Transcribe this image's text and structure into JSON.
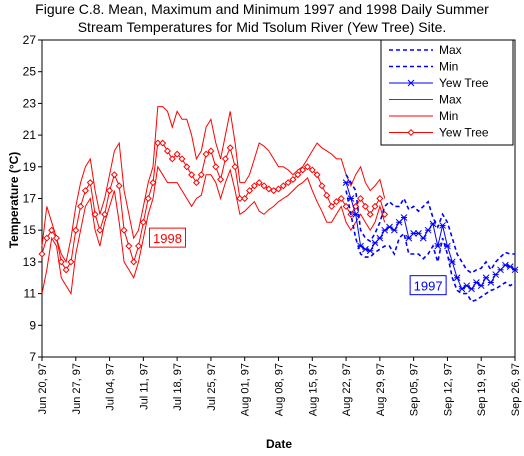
{
  "chart_data": {
    "type": "line",
    "title_line1": "Figure C.8.  Mean, Maximum and Minimum 1997 and 1998 Daily Summer",
    "title_line2": "Stream Temperatures for Mid Tsolum River (Yew Tree) Site.",
    "xlabel": "Date",
    "ylabel": "Temperature (°C)",
    "ylim": [
      7,
      27
    ],
    "yticks": [
      7,
      9,
      11,
      13,
      15,
      17,
      19,
      21,
      23,
      25,
      27
    ],
    "x_tick_labels": [
      "Jun 20, 97",
      "Jun 27, 97",
      "Jul 04, 97",
      "Jul 11, 97",
      "Jul 18, 97",
      "Jul 25, 97",
      "Aug 01, 97",
      "Aug 08, 97",
      "Aug 15, 97",
      "Aug 22, 97",
      "Aug 29, 97",
      "Sep 05, 97",
      "Sep 12, 97",
      "Sep 19, 97",
      "Sep 26, 97"
    ],
    "x_range_days": [
      0,
      98
    ],
    "annotations": [
      {
        "text": "1998",
        "color": "#ff0000",
        "x_day": 26,
        "y": 14.5
      },
      {
        "text": "1997",
        "color": "#0000ff",
        "x_day": 80,
        "y": 11.5
      }
    ],
    "legend": {
      "position": "top-right",
      "entries": [
        {
          "label": "Max",
          "color": "#0000ff",
          "style": "dashed-blue"
        },
        {
          "label": "Min",
          "color": "#0000ff",
          "style": "dashed-blue"
        },
        {
          "label": "Yew Tree",
          "color": "#0000ff",
          "style": "star-blue"
        },
        {
          "label": "Max",
          "color": "#ff0000",
          "style": "solid-red"
        },
        {
          "label": "Min",
          "color": "#ff0000",
          "style": "solid-red"
        },
        {
          "label": "Yew Tree",
          "color": "#ff0000",
          "style": "diamond-red"
        }
      ]
    },
    "series": [
      {
        "name": "Max",
        "year": "1998",
        "color": "#ff0000",
        "style": "solid",
        "x": [
          0,
          1,
          2,
          3,
          4,
          5,
          6,
          7,
          8,
          9,
          10,
          11,
          12,
          13,
          14,
          15,
          16,
          17,
          18,
          19,
          20,
          21,
          22,
          23,
          24,
          25,
          26,
          27,
          28,
          29,
          30,
          31,
          32,
          33,
          34,
          35,
          36,
          37,
          38,
          39,
          40,
          41,
          42,
          43,
          44,
          45,
          46,
          47,
          48,
          49,
          50,
          51,
          52,
          53,
          54,
          55,
          56,
          57,
          58,
          59,
          60,
          61,
          62,
          63,
          64,
          65,
          66,
          67,
          68,
          69,
          70,
          71
        ],
        "values": [
          14,
          16.5,
          15.5,
          14.5,
          13.5,
          13,
          14.5,
          16.5,
          18,
          19,
          19.5,
          17.5,
          16,
          17,
          18.5,
          20,
          20.5,
          17.5,
          16,
          14.5,
          15,
          16.5,
          18,
          19,
          22.8,
          22.8,
          22.5,
          21.5,
          22.5,
          22,
          22,
          21,
          19.5,
          20,
          21.5,
          22,
          20.5,
          19.5,
          21,
          22.5,
          20.5,
          18,
          18,
          18.5,
          19.5,
          20.5,
          20.3,
          20,
          19.5,
          19,
          19,
          18.8,
          18.5,
          18.8,
          19,
          19.5,
          20,
          20.5,
          20.2,
          20,
          19.8,
          19.5,
          19.5,
          18.5,
          17.8,
          18.5,
          19,
          18,
          17.5,
          17.8,
          18.2,
          17
        ]
      },
      {
        "name": "Yew Tree",
        "year": "1998",
        "color": "#ff0000",
        "style": "diamond",
        "x": [
          0,
          1,
          2,
          3,
          4,
          5,
          6,
          7,
          8,
          9,
          10,
          11,
          12,
          13,
          14,
          15,
          16,
          17,
          18,
          19,
          20,
          21,
          22,
          23,
          24,
          25,
          26,
          27,
          28,
          29,
          30,
          31,
          32,
          33,
          34,
          35,
          36,
          37,
          38,
          39,
          40,
          41,
          42,
          43,
          44,
          45,
          46,
          47,
          48,
          49,
          50,
          51,
          52,
          53,
          54,
          55,
          56,
          57,
          58,
          59,
          60,
          61,
          62,
          63,
          64,
          65,
          66,
          67,
          68,
          69,
          70,
          71
        ],
        "values": [
          13.5,
          14.5,
          15,
          14.5,
          13,
          12.5,
          13,
          15,
          16.5,
          17.5,
          18,
          16,
          15,
          16,
          17.5,
          18.5,
          17.8,
          15,
          14,
          13,
          14,
          15.5,
          17,
          18,
          20.5,
          20.5,
          20,
          19.5,
          19.8,
          19.5,
          19,
          18.5,
          18,
          18.5,
          19.8,
          20,
          19,
          18.2,
          19.5,
          20.2,
          19,
          17,
          17,
          17.5,
          17.8,
          18,
          17.8,
          17.6,
          17.5,
          17.6,
          17.8,
          18,
          18.2,
          18.5,
          18.8,
          19,
          18.8,
          18.5,
          17.8,
          17.2,
          16.5,
          16.8,
          17,
          16.5,
          16,
          16.5,
          17,
          16.5,
          16,
          16.5,
          17,
          16
        ]
      },
      {
        "name": "Min",
        "year": "1998",
        "color": "#ff0000",
        "style": "solid",
        "x": [
          0,
          1,
          2,
          3,
          4,
          5,
          6,
          7,
          8,
          9,
          10,
          11,
          12,
          13,
          14,
          15,
          16,
          17,
          18,
          19,
          20,
          21,
          22,
          23,
          24,
          25,
          26,
          27,
          28,
          29,
          30,
          31,
          32,
          33,
          34,
          35,
          36,
          37,
          38,
          39,
          40,
          41,
          42,
          43,
          44,
          45,
          46,
          47,
          48,
          49,
          50,
          51,
          52,
          53,
          54,
          55,
          56,
          57,
          58,
          59,
          60,
          61,
          62,
          63,
          64,
          65,
          66,
          67,
          68,
          69,
          70,
          71
        ],
        "values": [
          11,
          12.5,
          14.5,
          14,
          12,
          11.5,
          11,
          13.5,
          15,
          16.5,
          17,
          15,
          14,
          15.5,
          16.5,
          17.5,
          15.5,
          13,
          12.5,
          12,
          13,
          14.5,
          16,
          17,
          19,
          18.5,
          18,
          18,
          18,
          17.5,
          17,
          16.5,
          17,
          17.2,
          18.5,
          18.5,
          18,
          17,
          18,
          18.8,
          17.5,
          16,
          16.2,
          16.5,
          16.8,
          16.2,
          16,
          16.3,
          16.5,
          16.8,
          17,
          17.2,
          17.5,
          17.8,
          18,
          18.3,
          17.5,
          16.8,
          16.2,
          15.5,
          15.5,
          16,
          16.5,
          15.5,
          15,
          15.5,
          16,
          15.5,
          15,
          15.5,
          16.5,
          15.5
        ]
      },
      {
        "name": "Max",
        "year": "1997",
        "color": "#0000ff",
        "style": "dashed",
        "x": [
          63,
          64,
          65,
          66,
          67,
          68,
          69,
          70,
          71,
          72,
          73,
          74,
          75,
          76,
          77,
          78,
          79,
          80,
          81,
          82,
          83,
          84,
          85,
          86,
          87,
          88,
          89,
          90,
          91,
          92,
          93,
          94,
          95,
          96,
          97,
          98
        ],
        "values": [
          18.5,
          18,
          17.5,
          15,
          14.5,
          14.3,
          14.8,
          15.5,
          16.5,
          16.8,
          16.5,
          16.5,
          17,
          16.3,
          16.5,
          16.2,
          16.5,
          16.8,
          15.8,
          15.2,
          16,
          15.5,
          14.5,
          13.5,
          13,
          12.5,
          12.3,
          12.5,
          12.6,
          13,
          12.5,
          13,
          13.3,
          13.6,
          13.5,
          13.5
        ]
      },
      {
        "name": "Yew Tree",
        "year": "1997",
        "color": "#0000ff",
        "style": "star",
        "x": [
          63,
          64,
          65,
          66,
          67,
          68,
          69,
          70,
          71,
          72,
          73,
          74,
          75,
          76,
          77,
          78,
          79,
          80,
          81,
          82,
          83,
          84,
          85,
          86,
          87,
          88,
          89,
          90,
          91,
          92,
          93,
          94,
          95,
          96,
          97,
          98
        ],
        "values": [
          18,
          17,
          16,
          14,
          13.8,
          13.7,
          14.2,
          14.5,
          15,
          15.2,
          15,
          15.5,
          15.8,
          14.5,
          14.8,
          14.8,
          14.5,
          15,
          15.4,
          14,
          15.3,
          14,
          13,
          12,
          11.3,
          11.5,
          11.3,
          11.7,
          11.5,
          12,
          11.7,
          12.2,
          12.5,
          12.8,
          12.7,
          12.5
        ]
      },
      {
        "name": "Min",
        "year": "1997",
        "color": "#0000ff",
        "style": "dashed",
        "x": [
          63,
          64,
          65,
          66,
          67,
          68,
          69,
          70,
          71,
          72,
          73,
          74,
          75,
          76,
          77,
          78,
          79,
          80,
          81,
          82,
          83,
          84,
          85,
          86,
          87,
          88,
          89,
          90,
          91,
          92,
          93,
          94,
          95,
          96,
          97,
          98
        ],
        "values": [
          17.5,
          16,
          14.5,
          13.5,
          13.3,
          13.3,
          13.6,
          13.8,
          14,
          14,
          13.5,
          14.5,
          14.8,
          13.5,
          13.5,
          13.5,
          13.2,
          13.5,
          14,
          13,
          14.5,
          13.5,
          12,
          11.2,
          11,
          11,
          10.5,
          10.6,
          10.8,
          11,
          11.2,
          11.3,
          11.5,
          11.7,
          11.5,
          11.7
        ]
      }
    ]
  }
}
